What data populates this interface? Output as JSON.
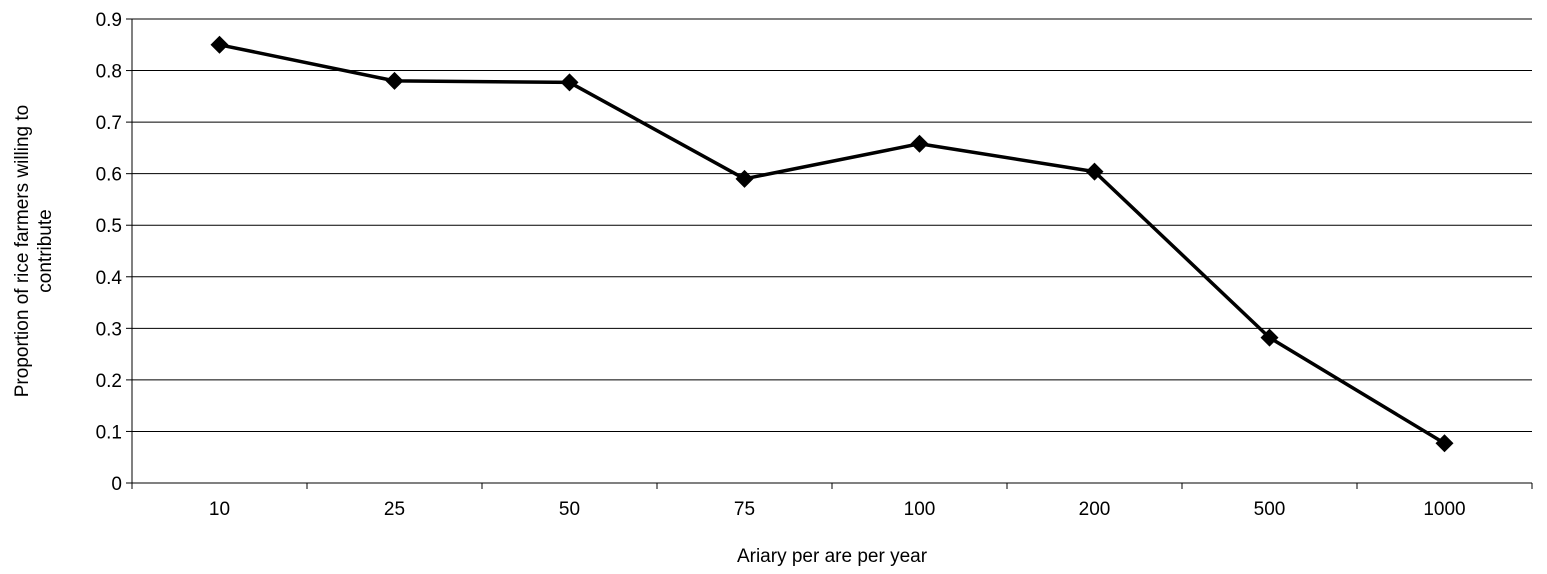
{
  "chart_data": {
    "type": "line",
    "title": "",
    "xlabel": "Ariary per are per year",
    "ylabel_lines": [
      "Proportion of rice farmers willing to",
      "contribute"
    ],
    "categories": [
      "10",
      "25",
      "50",
      "75",
      "100",
      "200",
      "500",
      "1000"
    ],
    "series": [
      {
        "values": [
          0.85,
          0.78,
          0.777,
          0.59,
          0.658,
          0.604,
          0.282,
          0.077
        ]
      }
    ],
    "ylim": [
      0,
      0.9
    ],
    "yticks": [
      "0",
      "0.1",
      "0.2",
      "0.3",
      "0.4",
      "0.5",
      "0.6",
      "0.7",
      "0.8",
      "0.9"
    ],
    "grid": true,
    "legend": "none",
    "colors": {
      "line": "#000000",
      "marker": "#000000",
      "grid": "#000000",
      "axis": "#000000"
    },
    "marker": "diamond"
  }
}
